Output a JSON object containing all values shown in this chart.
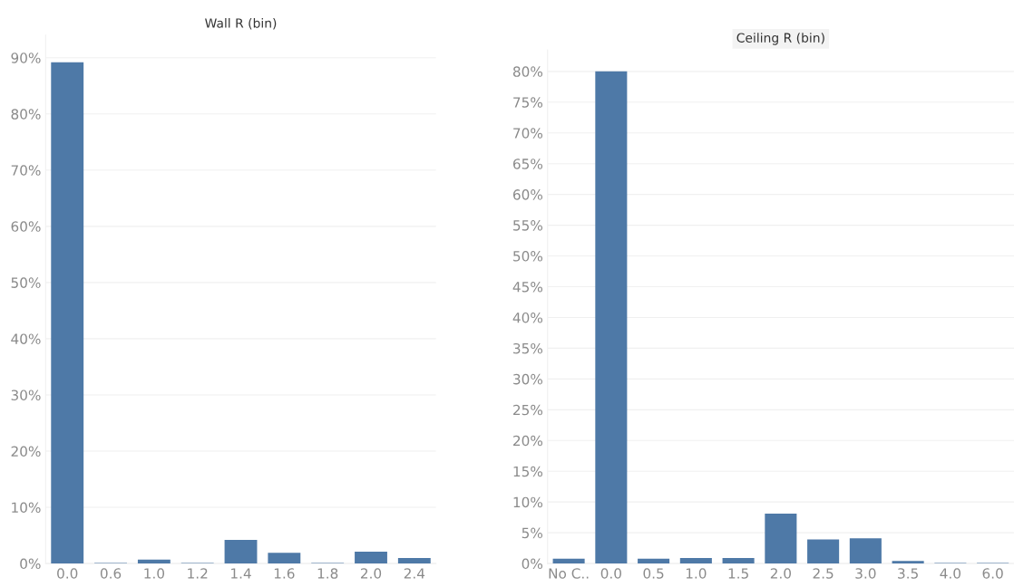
{
  "chart_data": [
    {
      "type": "bar",
      "title": "Wall R (bin)",
      "categories": [
        "0.0",
        "0.6",
        "1.0",
        "1.2",
        "1.4",
        "1.6",
        "1.8",
        "2.0",
        "2.4"
      ],
      "values": [
        89.2,
        0.1,
        0.7,
        0.1,
        4.2,
        1.9,
        0.1,
        2.1,
        1.0
      ],
      "color": "#4e79a7",
      "ylim": [
        0,
        94
      ],
      "yticks": [
        {
          "value": 0,
          "label": "0%"
        },
        {
          "value": 10,
          "label": "10%"
        },
        {
          "value": 20,
          "label": "20%"
        },
        {
          "value": 30,
          "label": "30%"
        },
        {
          "value": 40,
          "label": "40%"
        },
        {
          "value": 50,
          "label": "50%"
        },
        {
          "value": 60,
          "label": "60%"
        },
        {
          "value": 70,
          "label": "70%"
        },
        {
          "value": 80,
          "label": "80%"
        },
        {
          "value": 90,
          "label": "90%"
        }
      ],
      "grid": "y"
    },
    {
      "type": "bar",
      "title": "Ceiling R (bin)",
      "categories": [
        "No C..",
        "0.0",
        "0.5",
        "1.0",
        "1.5",
        "2.0",
        "2.5",
        "3.0",
        "3.5",
        "4.0",
        "6.0"
      ],
      "values": [
        0.8,
        80.0,
        0.8,
        0.9,
        0.9,
        8.1,
        3.9,
        4.1,
        0.4,
        0.1,
        0.1
      ],
      "color": "#4e79a7",
      "ylim": [
        0,
        83.5
      ],
      "yticks": [
        {
          "value": 0,
          "label": "0%"
        },
        {
          "value": 5,
          "label": "5%"
        },
        {
          "value": 10,
          "label": "10%"
        },
        {
          "value": 15,
          "label": "15%"
        },
        {
          "value": 20,
          "label": "20%"
        },
        {
          "value": 25,
          "label": "25%"
        },
        {
          "value": 30,
          "label": "30%"
        },
        {
          "value": 35,
          "label": "35%"
        },
        {
          "value": 40,
          "label": "40%"
        },
        {
          "value": 45,
          "label": "45%"
        },
        {
          "value": 50,
          "label": "50%"
        },
        {
          "value": 55,
          "label": "55%"
        },
        {
          "value": 60,
          "label": "60%"
        },
        {
          "value": 65,
          "label": "65%"
        },
        {
          "value": 70,
          "label": "70%"
        },
        {
          "value": 75,
          "label": "75%"
        },
        {
          "value": 80,
          "label": "80%"
        }
      ],
      "grid": "y"
    }
  ]
}
